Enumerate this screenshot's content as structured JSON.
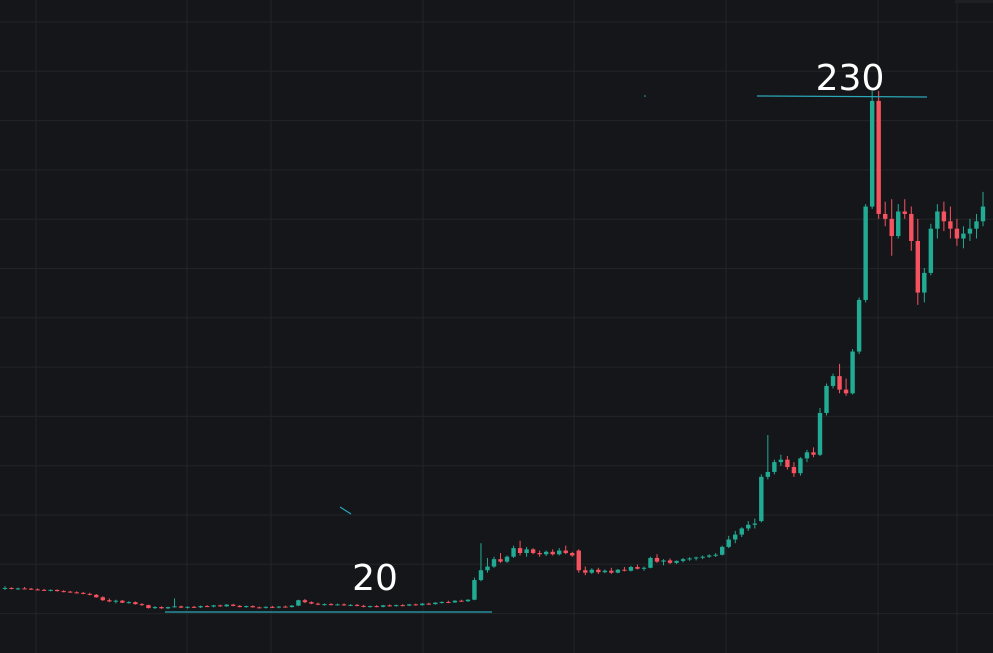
{
  "chart_data": {
    "type": "candlestick",
    "up_color": "#22ab94",
    "down_color": "#f7525f",
    "level_color": "#2aa7b8",
    "levels": [
      20,
      230
    ],
    "candles": [
      [
        29.5,
        30.5,
        29,
        29.8
      ],
      [
        29.8,
        30,
        29.2,
        29.4
      ],
      [
        29.4,
        29.9,
        29,
        29.6
      ],
      [
        29.6,
        30.2,
        29.3,
        29.5
      ],
      [
        29.5,
        29.8,
        29,
        29.2
      ],
      [
        29.2,
        29.6,
        28.8,
        29
      ],
      [
        29,
        29.4,
        28.6,
        28.8
      ],
      [
        28.8,
        29.2,
        28.4,
        29
      ],
      [
        29,
        29.2,
        28.3,
        28.5
      ],
      [
        28.5,
        28.9,
        28,
        28.3
      ],
      [
        28.3,
        28.6,
        27.8,
        28
      ],
      [
        28,
        28.4,
        27.5,
        27.8
      ],
      [
        27.8,
        28.1,
        27.2,
        27.4
      ],
      [
        27.4,
        27.8,
        26.8,
        27
      ],
      [
        27,
        27.3,
        25.8,
        26
      ],
      [
        26,
        26.4,
        24.5,
        24.8
      ],
      [
        24.8,
        25.5,
        24,
        24.3
      ],
      [
        24.3,
        25,
        23.5,
        24.6
      ],
      [
        24.6,
        24.9,
        23.6,
        23.8
      ],
      [
        23.8,
        24.4,
        23.4,
        24
      ],
      [
        24,
        24.3,
        23,
        23.2
      ],
      [
        23.2,
        23.6,
        22.5,
        22.8
      ],
      [
        22.8,
        23,
        21.4,
        21.6
      ],
      [
        21.6,
        22.4,
        21.2,
        22
      ],
      [
        22,
        22.3,
        21.3,
        21.5
      ],
      [
        21.5,
        22.2,
        21.2,
        22
      ],
      [
        22,
        25.5,
        21.8,
        22.3
      ],
      [
        22.3,
        22.6,
        21.6,
        21.8
      ],
      [
        21.8,
        22.3,
        21.4,
        22.1
      ],
      [
        22.1,
        22.5,
        21.7,
        21.9
      ],
      [
        21.9,
        22.6,
        21.6,
        22.4
      ],
      [
        22.4,
        22.8,
        22,
        22.2
      ],
      [
        22.2,
        22.9,
        21.9,
        22.7
      ],
      [
        22.7,
        23,
        22.1,
        22.3
      ],
      [
        22.3,
        23.2,
        22.1,
        23
      ],
      [
        23,
        23.3,
        22.3,
        22.5
      ],
      [
        22.5,
        22.8,
        21.9,
        22
      ],
      [
        22,
        22.6,
        21.7,
        22.4
      ],
      [
        22.4,
        22.7,
        21.8,
        21.9
      ],
      [
        21.9,
        22.2,
        21.5,
        21.7
      ],
      [
        21.7,
        22.3,
        21.4,
        22.1
      ],
      [
        22.1,
        22.5,
        21.6,
        21.8
      ],
      [
        21.8,
        22.4,
        21.5,
        22.2
      ],
      [
        22.2,
        22.6,
        21.8,
        22
      ],
      [
        22,
        22.8,
        21.8,
        22.6
      ],
      [
        22.6,
        25,
        22.4,
        24.8
      ],
      [
        24.8,
        25.3,
        23.6,
        24
      ],
      [
        24,
        24.3,
        23.2,
        23.4
      ],
      [
        23.4,
        23.8,
        22.8,
        23
      ],
      [
        23,
        23.5,
        22.6,
        23.2
      ],
      [
        23.2,
        23.6,
        22.7,
        22.9
      ],
      [
        22.9,
        23.4,
        22.6,
        23.1
      ],
      [
        23.1,
        23.5,
        22.5,
        22.7
      ],
      [
        22.7,
        23.2,
        22.4,
        22.9
      ],
      [
        22.9,
        23.3,
        22.3,
        22.5
      ],
      [
        22.5,
        22.9,
        21.9,
        22.1
      ],
      [
        22.1,
        22.6,
        21.8,
        22.4
      ],
      [
        22.4,
        22.8,
        21.9,
        22.1
      ],
      [
        22.1,
        22.9,
        21.9,
        22.7
      ],
      [
        22.7,
        23.1,
        22.2,
        22.4
      ],
      [
        22.4,
        23,
        22.2,
        22.8
      ],
      [
        22.8,
        23.2,
        22.3,
        22.6
      ],
      [
        22.6,
        23.3,
        22.4,
        23.1
      ],
      [
        23.1,
        23.4,
        22.6,
        22.8
      ],
      [
        22.8,
        23.6,
        22.6,
        23.4
      ],
      [
        23.4,
        23.8,
        22.9,
        23.2
      ],
      [
        23.2,
        24,
        23,
        23.8
      ],
      [
        23.8,
        24.3,
        23.4,
        24.1
      ],
      [
        24.1,
        24.6,
        23.6,
        23.9
      ],
      [
        23.9,
        24.8,
        23.7,
        24.6
      ],
      [
        24.6,
        25,
        24.2,
        24.4
      ],
      [
        24.4,
        25.2,
        24.1,
        25
      ],
      [
        25,
        34,
        24.8,
        33
      ],
      [
        33,
        48,
        32.5,
        37
      ],
      [
        37,
        42,
        36,
        38.5
      ],
      [
        38.5,
        42.5,
        38,
        41.5
      ],
      [
        41.5,
        44,
        40,
        40.5
      ],
      [
        40.5,
        43,
        40,
        42.5
      ],
      [
        42.5,
        47,
        42,
        46
      ],
      [
        46,
        49,
        43,
        44
      ],
      [
        44,
        46.5,
        42.5,
        45.5
      ],
      [
        45.5,
        46,
        43.5,
        44
      ],
      [
        44,
        45,
        42.5,
        43.5
      ],
      [
        43.5,
        45,
        42.8,
        44.5
      ],
      [
        44.5,
        45.5,
        43,
        43.5
      ],
      [
        43.5,
        46,
        43,
        45
      ],
      [
        45,
        47,
        43.5,
        44
      ],
      [
        44,
        44.5,
        42.5,
        43
      ],
      [
        45,
        45.5,
        36,
        37
      ],
      [
        37,
        38.5,
        35,
        36
      ],
      [
        36,
        37.8,
        35.5,
        37.2
      ],
      [
        37.2,
        38,
        35.5,
        36.2
      ],
      [
        36.2,
        37.3,
        35.8,
        36.8
      ],
      [
        36.8,
        38,
        35.5,
        36
      ],
      [
        36,
        37.5,
        35.8,
        37.2
      ],
      [
        37.2,
        38.3,
        36.5,
        36.8
      ],
      [
        36.8,
        38.8,
        36.5,
        38.3
      ],
      [
        38.3,
        39.3,
        37.3,
        37.6
      ],
      [
        37.6,
        38.5,
        36.8,
        38
      ],
      [
        38,
        42.5,
        37.8,
        42
      ],
      [
        42,
        43.5,
        40,
        40.5
      ],
      [
        40.5,
        41.5,
        39,
        41
      ],
      [
        41,
        41.8,
        39.5,
        40
      ],
      [
        40,
        41,
        39.5,
        40.8
      ],
      [
        40.8,
        42,
        40.2,
        41.5
      ],
      [
        41.5,
        42.3,
        40.8,
        41.8
      ],
      [
        41.8,
        42.5,
        41,
        42.2
      ],
      [
        42.2,
        43,
        41.5,
        42.5
      ],
      [
        42.5,
        43.5,
        42,
        43
      ],
      [
        43,
        44,
        42.4,
        43.3
      ],
      [
        43.3,
        47,
        43,
        46.5
      ],
      [
        46.5,
        51,
        46,
        49.5
      ],
      [
        49.5,
        53,
        48,
        51.5
      ],
      [
        51.5,
        54.5,
        50.5,
        54
      ],
      [
        54,
        57,
        53,
        55.5
      ],
      [
        55.5,
        58,
        54,
        56
      ],
      [
        57,
        76,
        56.5,
        75
      ],
      [
        75,
        92,
        74,
        77
      ],
      [
        77,
        82,
        76,
        81
      ],
      [
        81,
        84,
        79.5,
        82
      ],
      [
        82,
        83.5,
        78,
        79
      ],
      [
        79,
        81,
        75,
        76.5
      ],
      [
        76.5,
        83,
        75.5,
        82.5
      ],
      [
        82.5,
        86,
        81,
        85
      ],
      [
        85,
        87,
        83,
        84
      ],
      [
        84,
        103,
        83.5,
        101
      ],
      [
        101,
        113,
        100,
        112
      ],
      [
        112,
        117,
        111,
        116
      ],
      [
        116,
        121,
        109,
        110.5
      ],
      [
        110.5,
        115,
        108,
        109
      ],
      [
        109,
        127,
        108.5,
        126
      ],
      [
        126,
        148,
        125,
        147
      ],
      [
        147,
        186,
        146,
        185
      ],
      [
        185,
        232,
        184,
        228
      ],
      [
        228,
        232,
        180,
        182
      ],
      [
        182,
        187,
        177,
        180
      ],
      [
        180,
        188,
        165,
        173
      ],
      [
        173,
        186,
        172,
        183
      ],
      [
        183,
        188,
        180,
        182
      ],
      [
        182,
        185,
        167,
        171
      ],
      [
        171,
        180,
        145,
        150
      ],
      [
        150,
        160,
        146,
        158
      ],
      [
        158,
        178,
        157,
        176
      ],
      [
        176,
        186,
        172,
        183
      ],
      [
        183,
        187,
        175,
        179
      ],
      [
        179,
        185,
        172,
        176
      ],
      [
        176,
        180,
        169,
        172
      ],
      [
        172,
        177,
        168,
        174
      ],
      [
        174,
        180,
        171,
        176
      ],
      [
        176,
        182,
        172,
        179
      ],
      [
        179,
        191,
        177,
        185
      ]
    ]
  }
}
